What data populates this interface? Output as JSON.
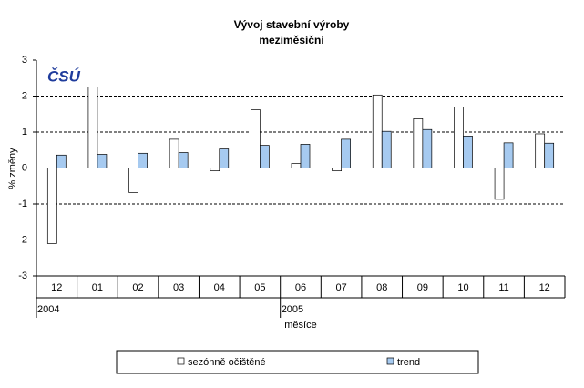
{
  "chart_data": {
    "type": "bar",
    "title": "Vývoj stavební výroby",
    "subtitle": "meziměsíční",
    "logo": "ČSÚ",
    "y_label": "% změny",
    "x_label": "měsíce",
    "categories": [
      "12",
      "01",
      "02",
      "03",
      "04",
      "05",
      "06",
      "07",
      "08",
      "09",
      "10",
      "11",
      "12"
    ],
    "year_labels": [
      "2004",
      null,
      null,
      null,
      null,
      null,
      "2005",
      null,
      null,
      null,
      null,
      null,
      null
    ],
    "series": [
      {
        "name": "sezónně očištěné",
        "color": "#ffffff",
        "values": [
          -2.1,
          2.25,
          -0.68,
          0.8,
          -0.08,
          1.62,
          0.13,
          -0.08,
          2.03,
          1.37,
          1.7,
          -0.87,
          0.95
        ]
      },
      {
        "name": "trend",
        "color": "#a6caf0",
        "values": [
          0.36,
          0.38,
          0.41,
          0.43,
          0.53,
          0.63,
          0.66,
          0.8,
          1.02,
          1.07,
          0.89,
          0.7,
          0.69
        ]
      }
    ],
    "ylim": [
      -3,
      3
    ],
    "yticks": [
      -3,
      -2,
      -1,
      0,
      1,
      2,
      3
    ],
    "grid": true,
    "legend": "bottom"
  }
}
